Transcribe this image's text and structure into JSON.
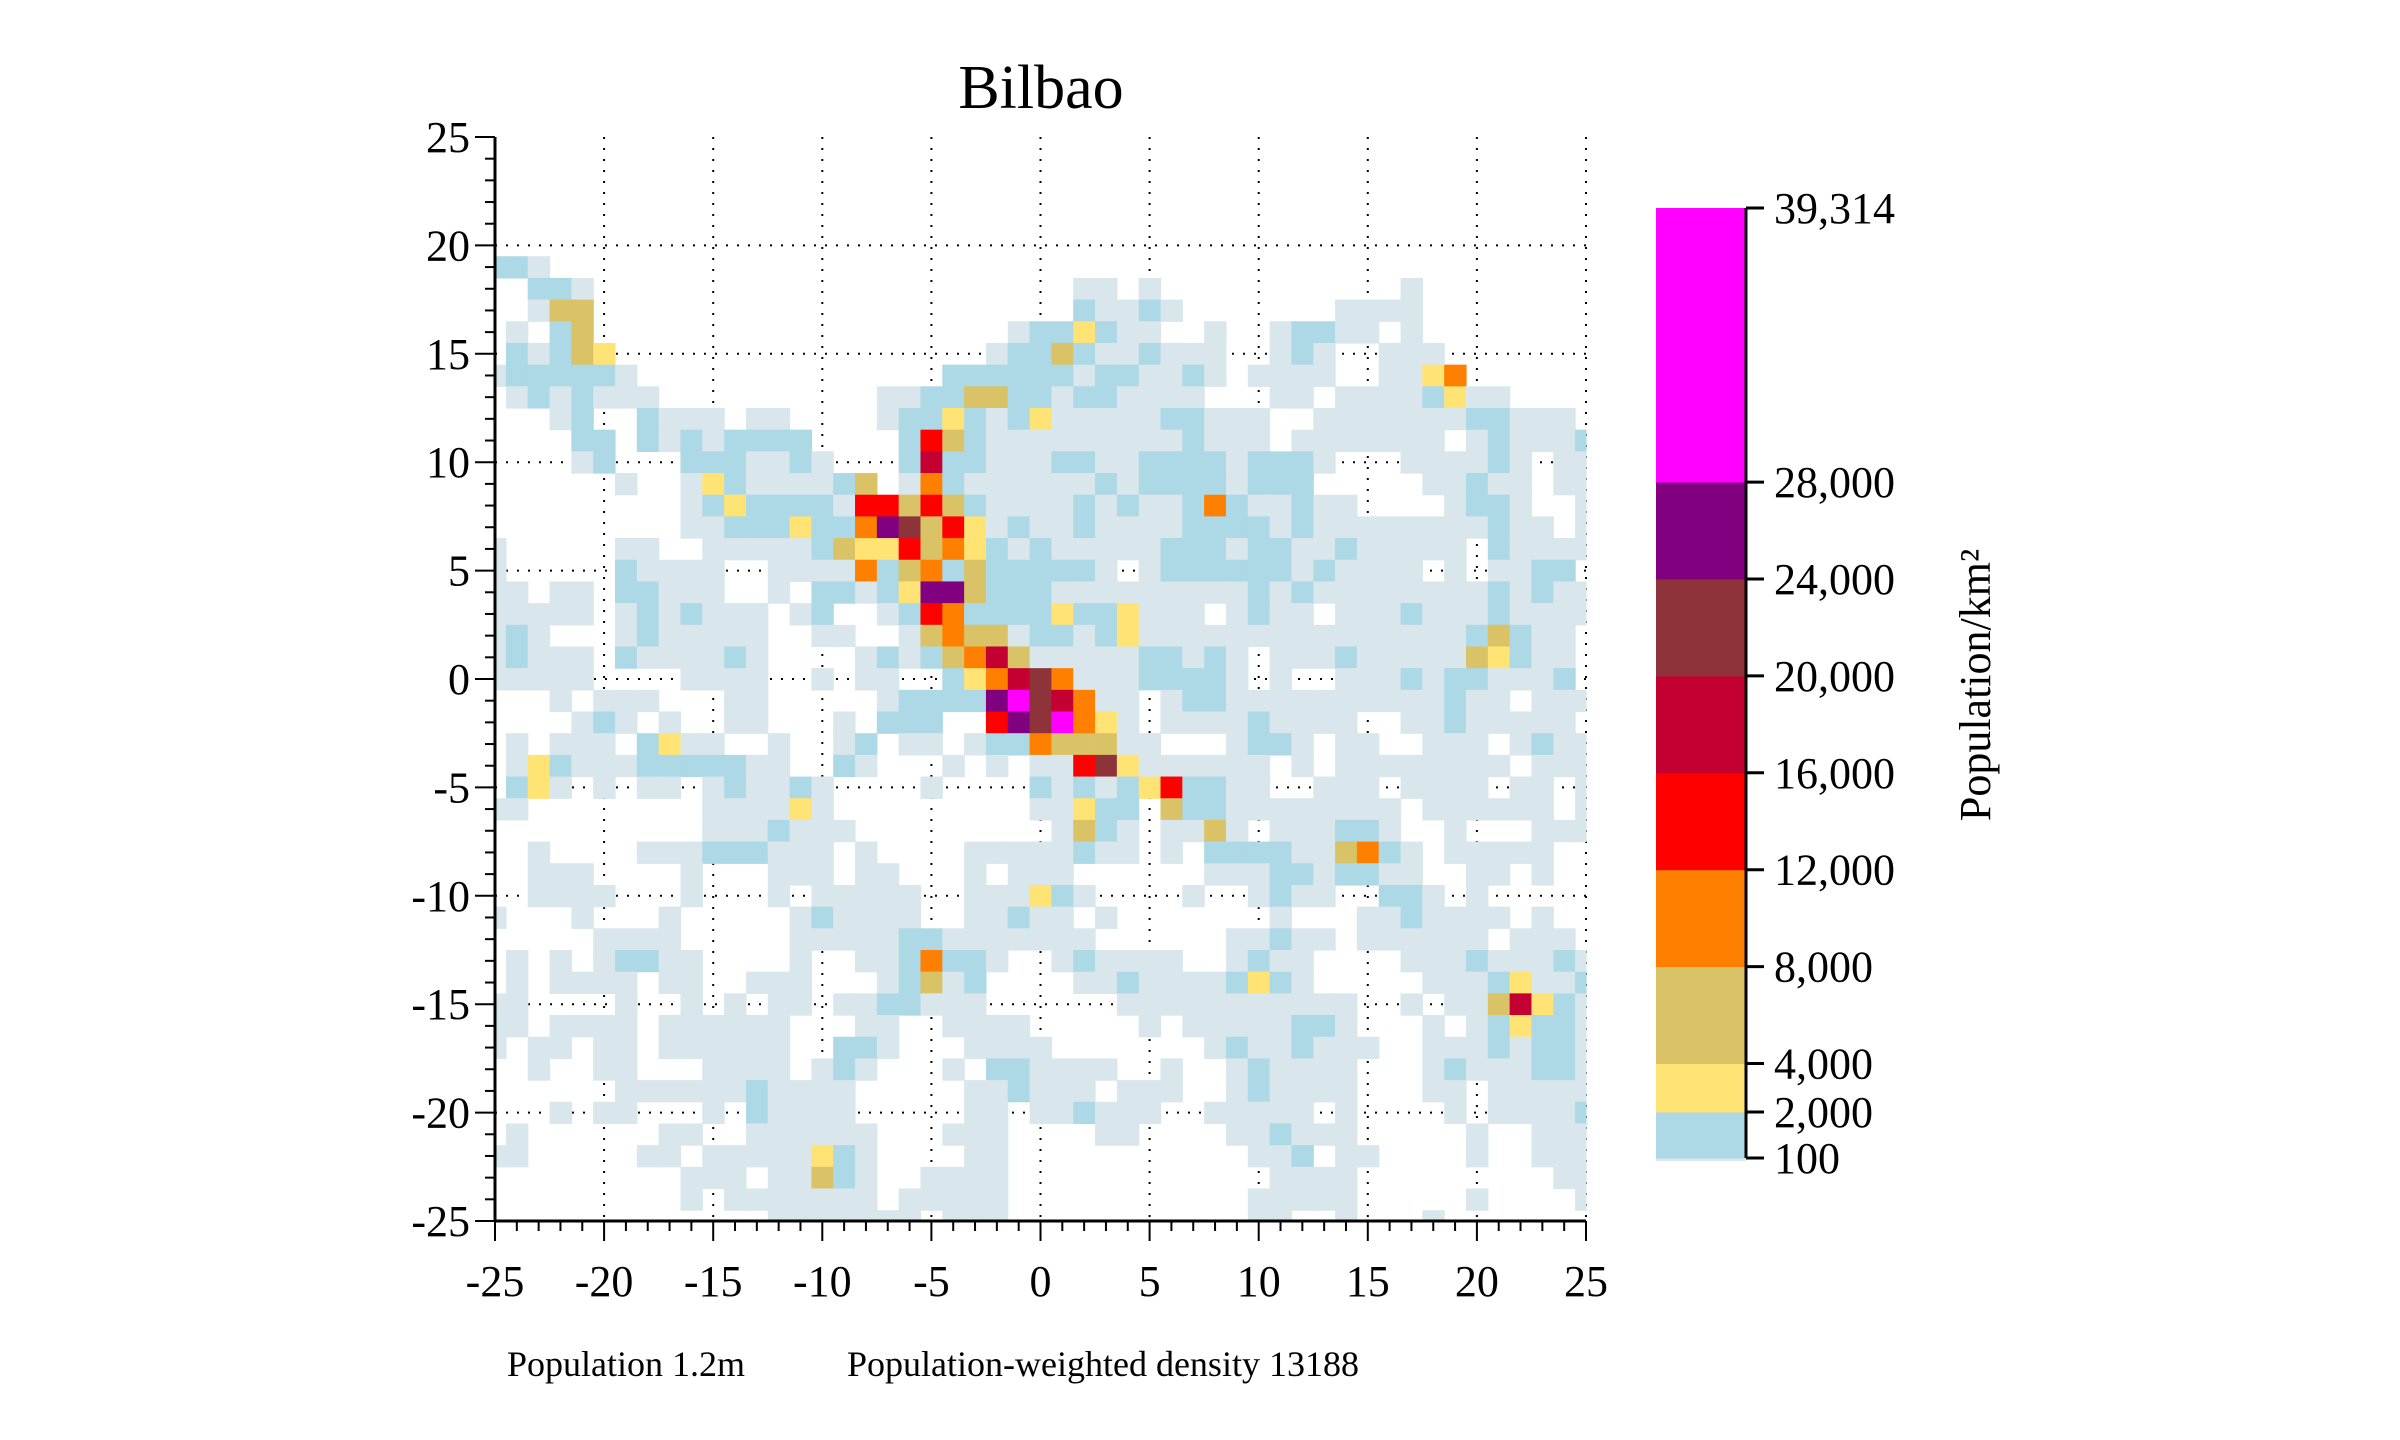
{
  "chart_data": {
    "type": "heatmap",
    "title": "Bilbao",
    "xlabel": "",
    "ylabel": "",
    "xlim": [
      -25,
      25
    ],
    "ylim": [
      -25,
      25
    ],
    "x_ticks": [
      "-25",
      "-20",
      "-15",
      "-10",
      "-5",
      "0",
      "5",
      "10",
      "15",
      "20",
      "25"
    ],
    "y_ticks": [
      "25",
      "20",
      "15",
      "10",
      "5",
      "0",
      "-5",
      "-10",
      "-15",
      "-20",
      "-25"
    ],
    "grid": true,
    "cell_size": 1,
    "colorbar": {
      "label": "Population/km²",
      "position": "right",
      "ticks": [
        "39,314",
        "28,000",
        "24,000",
        "20,000",
        "16,000",
        "12,000",
        "8,000",
        "4,000",
        "2,000",
        "100"
      ],
      "tick_values": [
        39314,
        28000,
        24000,
        20000,
        16000,
        12000,
        8000,
        4000,
        2000,
        100
      ]
    },
    "levels": [
      {
        "code": "g",
        "min": 0,
        "max": 100,
        "color": "#d9e6ec"
      },
      {
        "code": "b",
        "min": 100,
        "max": 2000,
        "color": "#add8e6"
      },
      {
        "code": "y",
        "min": 2000,
        "max": 4000,
        "color": "#ffe375"
      },
      {
        "code": "t",
        "min": 4000,
        "max": 8000,
        "color": "#d9c366"
      },
      {
        "code": "o",
        "min": 8000,
        "max": 12000,
        "color": "#ff8000"
      },
      {
        "code": "r",
        "min": 12000,
        "max": 16000,
        "color": "#ff0000"
      },
      {
        "code": "c",
        "min": 16000,
        "max": 20000,
        "color": "#c40033"
      },
      {
        "code": "m",
        "min": 20000,
        "max": 24000,
        "color": "#8f333b"
      },
      {
        "code": "p",
        "min": 24000,
        "max": 28000,
        "color": "#800080"
      },
      {
        "code": "M",
        "min": 28000,
        "max": 39314,
        "color": "#ff00ff"
      }
    ],
    "rows": [
      {
        "y": 25,
        "west": "",
        "east": ""
      },
      {
        "y": 24,
        "west": "",
        "east": ""
      },
      {
        "y": 23,
        "west": "",
        "east": ""
      },
      {
        "y": 22,
        "west": "",
        "east": ""
      },
      {
        "y": 21,
        "west": "",
        "east": ""
      },
      {
        "y": 20,
        "west": "",
        "east": ""
      },
      {
        "y": 19,
        "west": "bbg",
        "east": ""
      },
      {
        "y": 18,
        "west": "..bbg",
        "east": "..gg.g...........g"
      },
      {
        "y": 17,
        "west": "..gtt",
        "east": "..bggbg.......gggg"
      },
      {
        "y": 16,
        "west": ".g.bt...................g",
        "east": "bbybgg..g..gbbgg.g"
      },
      {
        "y": 15,
        "west": ".bgbty.................gb",
        "east": "btbggbggg..gbg..ggg"
      },
      {
        "y": 14,
        "west": "gbbbbbg..............bbbb",
        "east": "bbgbbggbg.gggg..ggyo"
      },
      {
        "y": 13,
        "west": ".gbgbggg..........ggbbttb",
        "east": "bgbbgggg...gg.ggggbygg"
      },
      {
        "y": 12,
        "west": "...gb..bggg.gg....gbbybgb",
        "east": "ygggggbbggg..gggggggbbggg"
      },
      {
        "y": 11,
        "west": "....bb.bgbgbbbb....brtbgg",
        "east": "gggggggbggg.ggggggg.gbgggb"
      },
      {
        "y": 10,
        "west": "....gb...bbbggbg...bcbbgg",
        "east": "gbbggbbbbgbbbg...ggggbg.gg"
      },
      {
        "y": 9,
        "west": "......g..gybggggbt.gobggg",
        "east": "gggbgbbbbgbbb.....ggbgg.gg"
      },
      {
        "y": 8,
        "west": ".........gbybbbbgrrtrtbgg",
        "east": "ggbgbggbobggbgg....gbbg..g"
      },
      {
        "y": 7,
        "west": ".........ggbbbybbopmtrygb",
        "east": "ggbggggbbbbgbggggggggbgg.g"
      },
      {
        "y": 6,
        "west": "g.....gg..gggggbtyyrtoybg",
        "east": "bgggggbbbgbbggbggggg.bgggg"
      },
      {
        "y": 5,
        "west": "g.....bgggg..ggggobtobtbb",
        "east": "bbbg.gbbbbbbgbgggg.g.ggbb"
      },
      {
        "y": 4,
        "west": "gg.gg.bbggg..g.bbgbypptbb",
        "east": "bgggggggggbgbggggggggbgbgg"
      },
      {
        "y": 3,
        "west": "ggggg.gbgbggg.gb..gbrobbb",
        "east": "bybbyggg.gbgg.gggbgggbgggg"
      },
      {
        "y": 2,
        "west": "gbg...gbggggg..gg..gtottg",
        "east": "bbgbygggggggggggggggbtbgg"
      },
      {
        "y": 1,
        "west": "gbggg.bggggbg....gbgbtoct",
        "east": "gggggbbgbg.gggbgggggtybgg"
      },
      {
        "y": 0,
        "west": "ggggg....gggg..g.gg..byoc",
        "east": "mogggbbbbg.g..gggbgbbgggb"
      },
      {
        "y": -1,
        "west": "...g.ggg...gg.....gbbbbpM",
        "east": "mcogg.gbbggggggggggbgg.ggg"
      },
      {
        "y": -2,
        "west": "....gbg.g..gg...g.bbb..rp",
        "east": "mMoyg.ggggbgggg..ggbggggg"
      },
      {
        "y": -3,
        "west": ".g.ggg.bygg..g..gb.gg.gbb",
        "east": "otttgg...gbbg.gg..ggg.gbgg"
      },
      {
        "y": -4,
        "west": ".gybgggbbbbbgg..bg...g.g",
        "east": "ggrmygggggg.g.gggggggg.ggg"
      },
      {
        "y": -5,
        "west": ".byg.g.gg.gbggbg....g",
        "east": "bgbgbyrbbgg..ggg.gggg.gg.g"
      },
      {
        "y": -6,
        "west": "gg........ggggyg",
        "east": "ggybb.tbbgggggggg.gggggg.g"
      },
      {
        "y": -7,
        "west": "..........gggbggg",
        "east": ".gtbg.ggtg.gggbbg..g...ggg"
      },
      {
        "y": -8,
        "west": "..g....gggbbbggg.g....ggg",
        "east": "ggbgg.g.bbbbggtobg.ggggg"
      },
      {
        "y": -9,
        "west": "..ggg....g...ggg.gg...g.g",
        "east": "gg......gggbbgbbgg..gg.g"
      },
      {
        "y": -10,
        "west": "..gggg...g...g.ggggg..ggg",
        "east": "ybg....g..gbgg..bbg.g"
      },
      {
        "y": -11,
        "west": "g...g...g.....gbgggg..ggb",
        "east": "gg.g.......g...ggbgggg.g"
      },
      {
        "y": -12,
        "west": ".....gggg.....gggggbbgggg",
        "east": "ggg......ggbgg.gggggg.ggg"
      },
      {
        "y": -13,
        "west": ".g.g.gbbgg....g..ggbobbg.",
        "east": ".gbgggg..gbgg....gggbgggbg"
      },
      {
        "y": -14,
        "west": ".g.gggg.gg..ggg...gbtgb",
        "east": "..ggbggggbybg.....gggbyggb"
      },
      {
        "y": -15,
        "west": "gg....g..g.g.gg.ggbbggg",
        "east": "....ggggggggggg..g.ggtcybg"
      },
      {
        "y": -16,
        "west": "gg.gggg.gggggg...gg..gggg",
        "east": ".....g.gggggbbg...g.gbybbg"
      },
      {
        "y": -17,
        "west": "g.gg.gg.gggggg..bbg...ggg",
        "east": "g.......gbggbggg..gggbgbbg"
      },
      {
        "y": -18,
        "west": "..g..gg...gggg.gbg...g.bb",
        "east": "gggg..g..gbgggg...gbgggbbg"
      },
      {
        "y": -19,
        "west": "......ggggggbgggg.....ggb",
        "east": "ggg.ggg..gbgggg...gg.ggggg"
      },
      {
        "y": -20,
        "west": "...g.gg...g.bgggg.....gg",
        "east": "ggbggg..ggggg.g....g.ggggb"
      },
      {
        "y": -21,
        "west": ".g......gg..gggggg...ggg",
        "east": "...gg....ggbggg.....g..ggg"
      },
      {
        "y": -22,
        "west": "gg.....gg.gggggybg....gg",
        "east": "..........ggb.gg....g..ggg"
      },
      {
        "y": -23,
        "west": ".........ggg.ggtbg..gggg",
        "east": "...........gggg.........gg"
      },
      {
        "y": -24,
        "west": ".........g.ggggggg.ggggg",
        "east": "..........ggggg.....g....g"
      },
      {
        "y": -25,
        "west": ".............ggggggg.ggg",
        "east": "..........gg..g...g"
      }
    ]
  },
  "footer": {
    "population": "Population 1.2m",
    "weighted_density": "Population-weighted density 13188"
  }
}
